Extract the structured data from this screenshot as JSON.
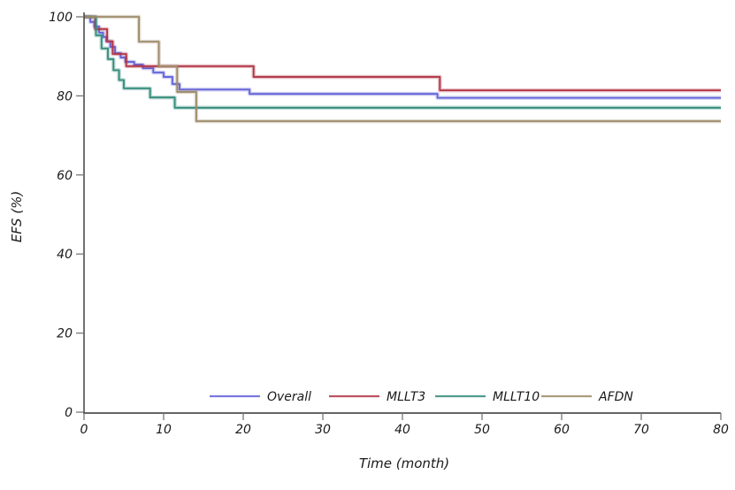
{
  "figure": {
    "background": "#ffffff",
    "axis_color": "#333333",
    "tick_color": "#777777",
    "text_color": "#1a1a1a"
  },
  "chart_data": {
    "type": "line",
    "subtype": "kaplan-meier-step-post",
    "title": "",
    "xlabel": "Time (month)",
    "ylabel": "EFS (%)",
    "xlim": [
      0,
      80
    ],
    "ylim": [
      0,
      100
    ],
    "xticks": [
      0,
      10,
      20,
      30,
      40,
      50,
      60,
      70,
      80
    ],
    "yticks": [
      0,
      20,
      40,
      60,
      80,
      100
    ],
    "grid": false,
    "legend_position": "bottom-center-inside",
    "series": [
      {
        "name": "Overall",
        "color": "#6262d8",
        "points": [
          [
            0,
            100
          ],
          [
            0.8,
            98.7
          ],
          [
            1.3,
            97.5
          ],
          [
            1.9,
            96.0
          ],
          [
            2.4,
            94.9
          ],
          [
            2.8,
            93.8
          ],
          [
            3.3,
            92.4
          ],
          [
            3.9,
            90.8
          ],
          [
            4.6,
            89.7
          ],
          [
            5.2,
            88.6
          ],
          [
            6.3,
            87.9
          ],
          [
            7.4,
            87.0
          ],
          [
            8.7,
            85.9
          ],
          [
            10,
            84.8
          ],
          [
            11.1,
            83.0
          ],
          [
            12,
            81.6
          ],
          [
            20.8,
            80.5
          ],
          [
            44.4,
            79.5
          ],
          [
            80,
            79.5
          ]
        ]
      },
      {
        "name": "MLLT3",
        "color": "#b03545",
        "points": [
          [
            0,
            100
          ],
          [
            1.4,
            96.9
          ],
          [
            2.9,
            93.8
          ],
          [
            3.6,
            90.6
          ],
          [
            5.3,
            87.5
          ],
          [
            21.3,
            84.8
          ],
          [
            44.7,
            81.4
          ],
          [
            80,
            81.4
          ]
        ]
      },
      {
        "name": "MLLT10",
        "color": "#338b7b",
        "points": [
          [
            0,
            100
          ],
          [
            1.5,
            95.3
          ],
          [
            2.2,
            92.0
          ],
          [
            3.0,
            89.3
          ],
          [
            3.7,
            86.5
          ],
          [
            4.4,
            84.0
          ],
          [
            5.0,
            81.9
          ],
          [
            8.3,
            79.6
          ],
          [
            11.4,
            77.0
          ],
          [
            80,
            77.0
          ]
        ]
      },
      {
        "name": "AFDN",
        "color": "#9c8a69",
        "points": [
          [
            0,
            100
          ],
          [
            6.9,
            93.7
          ],
          [
            9.4,
            87.5
          ],
          [
            11.7,
            81.0
          ],
          [
            14.1,
            73.6
          ],
          [
            80,
            73.6
          ]
        ]
      }
    ]
  }
}
